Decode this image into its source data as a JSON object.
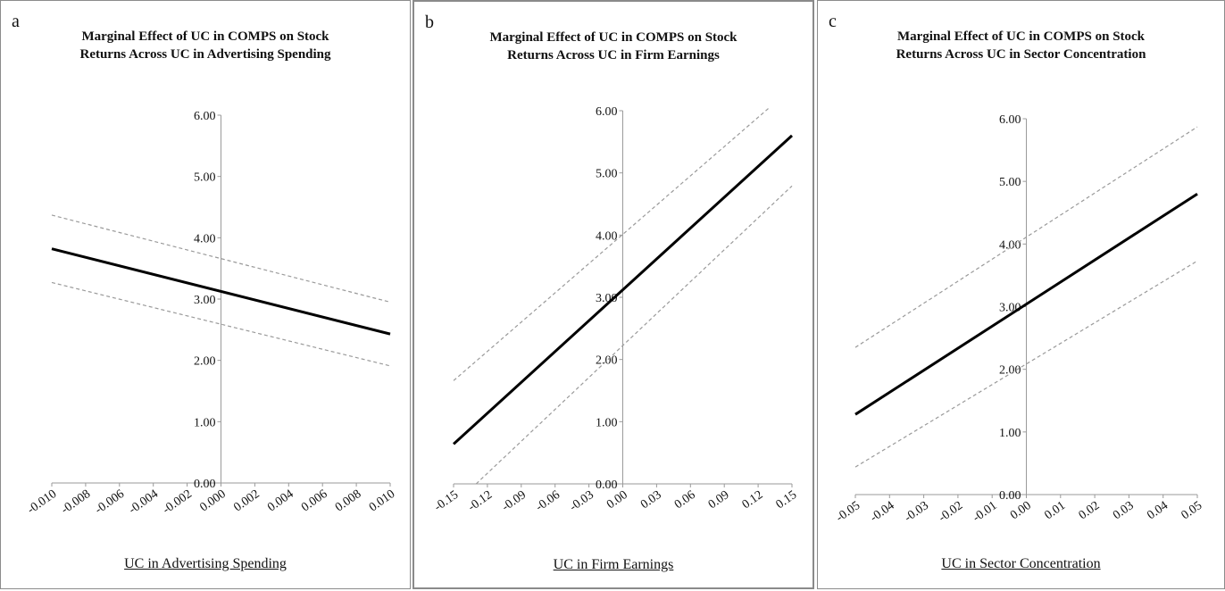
{
  "panels": [
    {
      "letter": "a",
      "title_line1": "Marginal Effect of UC in COMPS on Stock",
      "title_line2": "Returns Across UC in Advertising Spending",
      "xlabel": "UC in Advertising Spending"
    },
    {
      "letter": "b",
      "title_line1": "Marginal Effect of UC in COMPS on Stock",
      "title_line2": "Returns Across UC in Firm Earnings",
      "xlabel": "UC in Firm Earnings"
    },
    {
      "letter": "c",
      "title_line1": "Marginal Effect of UC in COMPS on Stock",
      "title_line2": "Returns Across UC in Sector Concentration",
      "xlabel": "UC in Sector Concentration"
    }
  ],
  "chart_data": [
    {
      "type": "line",
      "title": "Marginal Effect of UC in COMPS on Stock Returns Across UC in Advertising Spending",
      "xlabel": "UC in Advertising Spending",
      "ylabel": "",
      "xlim": [
        -0.01,
        0.01
      ],
      "ylim": [
        0.0,
        6.0
      ],
      "xticks": [
        "-0.010",
        "-0.008",
        "-0.006",
        "-0.004",
        "-0.002",
        "0.000",
        "0.002",
        "0.004",
        "0.006",
        "0.008",
        "0.010"
      ],
      "yticks": [
        "0.00",
        "1.00",
        "2.00",
        "3.00",
        "4.00",
        "5.00",
        "6.00"
      ],
      "grid": false,
      "series": [
        {
          "role": "estimate",
          "x": [
            -0.01,
            0.01
          ],
          "y": [
            3.82,
            2.43
          ]
        },
        {
          "role": "upper",
          "x": [
            -0.01,
            0.01
          ],
          "y": [
            4.37,
            2.95
          ]
        },
        {
          "role": "lower",
          "x": [
            -0.01,
            0.01
          ],
          "y": [
            3.27,
            1.91
          ]
        }
      ]
    },
    {
      "type": "line",
      "title": "Marginal Effect of UC in COMPS on Stock Returns Across UC in Firm Earnings",
      "xlabel": "UC in Firm Earnings",
      "ylabel": "",
      "xlim": [
        -0.15,
        0.15
      ],
      "ylim": [
        0.0,
        6.0
      ],
      "xticks": [
        "-0.15",
        "-0.12",
        "-0.09",
        "-0.06",
        "-0.03",
        "0.00",
        "0.03",
        "0.06",
        "0.09",
        "0.12",
        "0.15"
      ],
      "yticks": [
        "0.00",
        "1.00",
        "2.00",
        "3.00",
        "4.00",
        "5.00",
        "6.00"
      ],
      "grid": false,
      "series": [
        {
          "role": "estimate",
          "x": [
            -0.15,
            0.15
          ],
          "y": [
            0.64,
            5.6
          ]
        },
        {
          "role": "upper",
          "x": [
            -0.15,
            0.13
          ],
          "y": [
            1.66,
            6.05
          ]
        },
        {
          "role": "lower",
          "x": [
            -0.13,
            0.15
          ],
          "y": [
            0.0,
            4.79
          ]
        }
      ]
    },
    {
      "type": "line",
      "title": "Marginal Effect of UC in COMPS on Stock Returns Across UC in Sector Concentration",
      "xlabel": "UC in Sector Concentration",
      "ylabel": "",
      "xlim": [
        -0.05,
        0.05
      ],
      "ylim": [
        0.0,
        6.0
      ],
      "xticks": [
        "-0.05",
        "-0.04",
        "-0.03",
        "-0.02",
        "-0.01",
        "0.00",
        "0.01",
        "0.02",
        "0.03",
        "0.04",
        "0.05"
      ],
      "yticks": [
        "0.00",
        "1.00",
        "2.00",
        "3.00",
        "4.00",
        "5.00",
        "6.00"
      ],
      "grid": false,
      "series": [
        {
          "role": "estimate",
          "x": [
            -0.05,
            0.05
          ],
          "y": [
            1.28,
            4.8
          ]
        },
        {
          "role": "upper",
          "x": [
            -0.05,
            0.05
          ],
          "y": [
            2.35,
            5.87
          ]
        },
        {
          "role": "lower",
          "x": [
            -0.05,
            0.05
          ],
          "y": [
            0.44,
            3.73
          ]
        }
      ]
    }
  ]
}
